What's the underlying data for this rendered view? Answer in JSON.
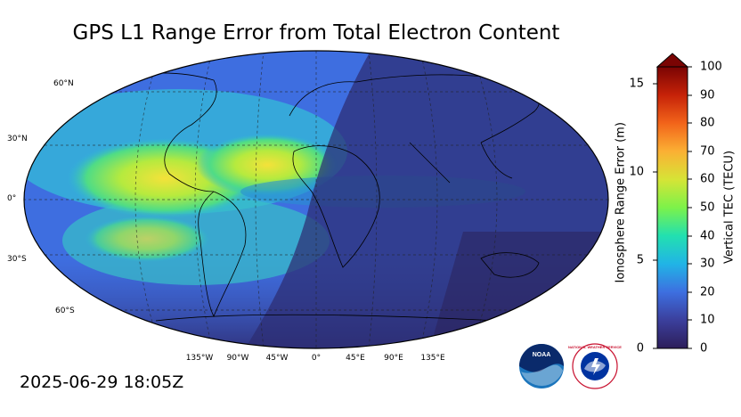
{
  "title": "GPS L1 Range Error from Total Electron Content",
  "timestamp": "2025-06-29 18:05Z",
  "map": {
    "lat_labels": [
      "60°N",
      "30°N",
      "0°",
      "30°S",
      "60°S"
    ],
    "lon_labels": [
      "135°W",
      "90°W",
      "45°W",
      "0°",
      "45°E",
      "90°E",
      "135°E"
    ]
  },
  "colorbar": {
    "left_label": "Ionosphere Range Error (m)",
    "right_label": "Vertical TEC (TECU)",
    "left_ticks": [
      "0",
      "5",
      "10",
      "15"
    ],
    "right_ticks": [
      "0",
      "10",
      "20",
      "30",
      "40",
      "50",
      "60",
      "70",
      "80",
      "90",
      "100"
    ],
    "colors": {
      "c0": "#2d1e5a",
      "c10": "#3b3f9c",
      "c20": "#3d6fe0",
      "c30": "#21b4e6",
      "c40": "#22e0b0",
      "c50": "#7cf24a",
      "c60": "#d6e436",
      "c70": "#fbb034",
      "c80": "#f2641a",
      "c90": "#c62208",
      "c100": "#7a0403"
    }
  },
  "logos": {
    "noaa": "NOAA",
    "nws": "NATIONAL WEATHER SERVICE"
  }
}
